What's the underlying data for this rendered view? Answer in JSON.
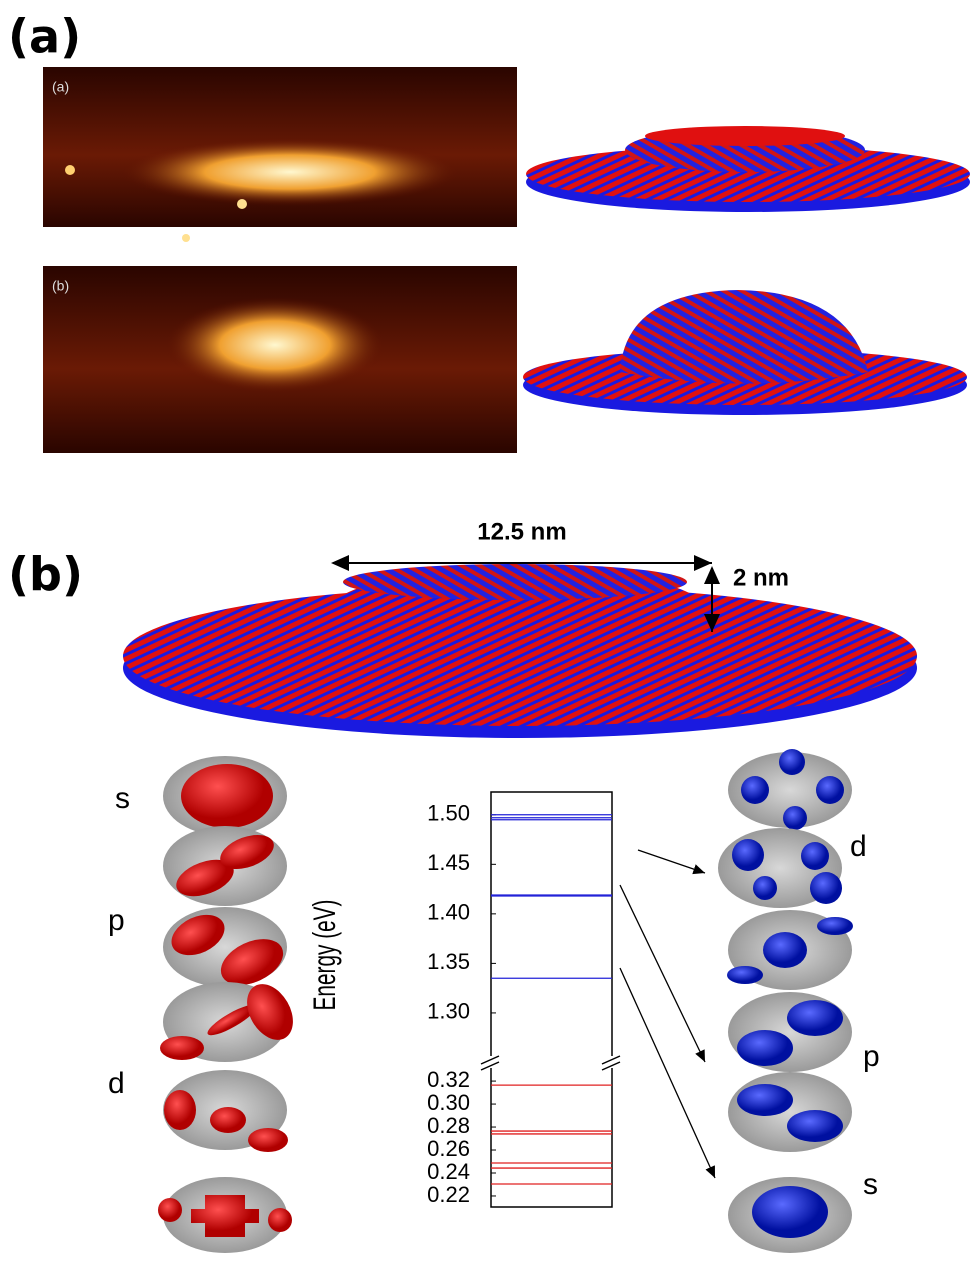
{
  "panel_labels": [
    "(a)",
    "(b)"
  ],
  "image_labels": [
    "(a)",
    "(b)"
  ],
  "dimensions": [
    "12.5 nm",
    "2 nm"
  ],
  "orbital_labels": {
    "left": [
      "s",
      "p",
      "d"
    ],
    "right": [
      "d",
      "p",
      "s"
    ]
  },
  "chart_data": [
    {
      "type": "energy-levels",
      "ylabel": "Energy (eV)",
      "color": "#2323d8",
      "values": [
        1.5,
        1.497,
        1.495,
        1.419,
        1.418,
        1.335
      ],
      "ylim": [
        1.2545,
        1.523
      ],
      "yticks": [
        {
          "value": 1.3,
          "label": "1.30"
        },
        1.35,
        {
          "value": 1.4,
          "label": "1.40"
        },
        1.45,
        {
          "value": 1.5,
          "label": "1.50"
        }
      ]
    },
    {
      "type": "energy-levels",
      "color": "#e02020",
      "values": [
        0.3165,
        0.2765,
        0.274,
        0.2487,
        0.2443,
        0.2304
      ],
      "ylim": [
        0.2104,
        0.334
      ],
      "yticks": [
        0.22,
        0.24,
        0.26,
        0.28,
        {
          "value": 0.3,
          "label": "0.30"
        },
        0.32
      ]
    }
  ]
}
